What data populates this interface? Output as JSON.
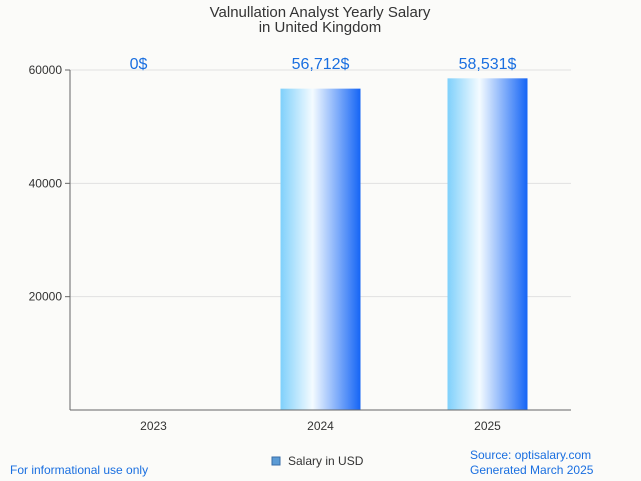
{
  "chart_data": {
    "type": "bar",
    "title": [
      "Valnullation Analyst Yearly Salary",
      "in United Kingdom"
    ],
    "categories": [
      "2023",
      "2024",
      "2025"
    ],
    "series": [
      {
        "name": "Salary in USD",
        "values": [
          0,
          56712,
          58531
        ]
      }
    ],
    "data_labels": [
      "0$",
      "56,712$",
      "58,531$"
    ],
    "yticks": [
      20000,
      40000,
      60000
    ],
    "ylim": [
      0,
      60000
    ],
    "grid": true,
    "legend": "bottom-center"
  },
  "footer": {
    "disclaimer": "For informational use only",
    "source": "Source: optisalary.com",
    "generated": "Generated March 2025"
  },
  "colors": {
    "bar_light": "#d9f4ff",
    "bar_mid": "#7fd0fb",
    "bar_dark": "#1565f5",
    "label": "#1a6fe0",
    "grid": "#e1e1e1",
    "axis": "#666666"
  }
}
